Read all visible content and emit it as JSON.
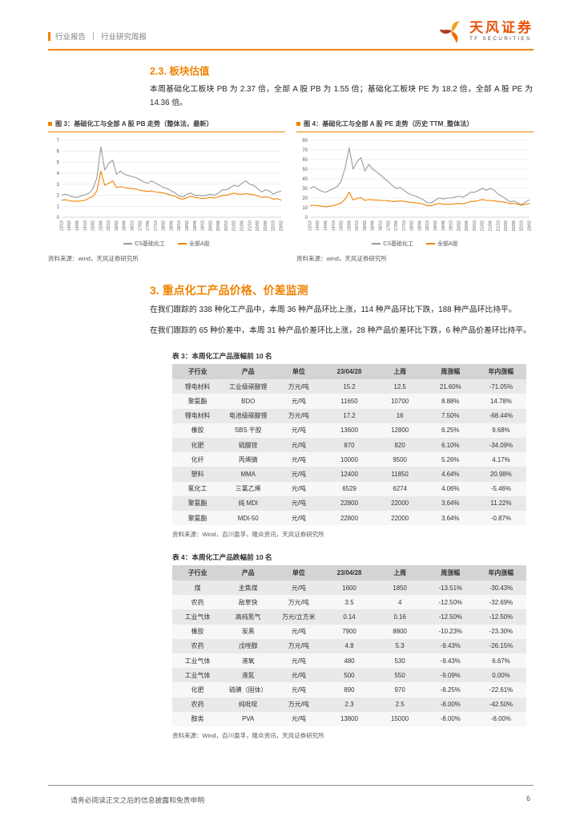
{
  "colors": {
    "accent": "#F08300",
    "brand_text": "#E8540C"
  },
  "header": {
    "category": "行业报告",
    "subtitle": "行业研究周报",
    "brand": {
      "name": "天风证券",
      "subname": "TF SECURITIES"
    }
  },
  "section_valuation": {
    "heading": "2.3. 板块估值",
    "paragraph": "本周基础化工板块 PB 为 2.37 倍，全部 A 股 PB 为 1.55 倍；基础化工板块 PE 为 18.2 倍，全部 A 股 PE 为 14.36 倍。"
  },
  "figures": [
    {
      "title": "图 3：基础化工与全部 A 股 PB 走势（整体法，最新）",
      "source": "资料来源：wind，天风证券研究所"
    },
    {
      "title": "图 4：基础化工与全部 A 股 PE 走势（历史 TTM_整体法）",
      "source": "资料来源：wind，天风证券研究所"
    }
  ],
  "chart_data": [
    {
      "type": "line",
      "title": "基础化工与全部A股PB走势（整体法，最新）",
      "ylim": [
        0,
        7
      ],
      "yticks": [
        0,
        1,
        2,
        3,
        4,
        5,
        6,
        7
      ],
      "grid": true,
      "legend_position": "bottom",
      "x_labels": [
        "13/10",
        "14/02",
        "14/06",
        "14/10",
        "15/02",
        "15/06",
        "15/10",
        "16/02",
        "16/06",
        "16/10",
        "17/02",
        "17/06",
        "17/10",
        "18/02",
        "18/06",
        "18/10",
        "19/02",
        "19/06",
        "19/10",
        "20/02",
        "20/06",
        "20/10",
        "21/02",
        "21/06",
        "21/10",
        "22/02",
        "22/06",
        "22/10",
        "23/02"
      ],
      "series": [
        {
          "name": "CS基础化工",
          "color": "#9B9B9B",
          "values": [
            2.0,
            2.1,
            1.95,
            1.85,
            1.8,
            1.95,
            2.05,
            2.2,
            2.6,
            3.6,
            6.4,
            4.3,
            4.9,
            5.2,
            3.9,
            4.2,
            3.9,
            3.8,
            3.7,
            3.6,
            3.4,
            3.2,
            3.1,
            3.3,
            3.1,
            2.9,
            2.7,
            2.6,
            2.4,
            2.2,
            1.9,
            1.85,
            2.1,
            2.2,
            2.0,
            2.0,
            1.95,
            2.0,
            2.1,
            2.0,
            2.2,
            2.5,
            2.5,
            2.7,
            2.9,
            2.8,
            3.1,
            3.3,
            3.0,
            2.9,
            2.6,
            2.3,
            2.5,
            2.4,
            2.1,
            2.3,
            2.37
          ]
        },
        {
          "name": "全部A股",
          "color": "#F08300",
          "values": [
            1.55,
            1.6,
            1.5,
            1.45,
            1.45,
            1.5,
            1.55,
            1.75,
            1.9,
            2.4,
            4.2,
            2.9,
            3.1,
            3.3,
            2.7,
            2.8,
            2.7,
            2.65,
            2.6,
            2.55,
            2.45,
            2.4,
            2.35,
            2.4,
            2.3,
            2.25,
            2.2,
            2.1,
            2.0,
            1.9,
            1.7,
            1.65,
            1.8,
            1.9,
            1.8,
            1.75,
            1.7,
            1.75,
            1.8,
            1.75,
            1.85,
            2.0,
            2.0,
            2.1,
            2.2,
            2.1,
            2.1,
            2.15,
            2.1,
            2.05,
            1.95,
            1.8,
            1.85,
            1.8,
            1.65,
            1.7,
            1.55
          ]
        }
      ]
    },
    {
      "type": "line",
      "title": "基础化工与全部A股PE走势（历史TTM_整体法）",
      "ylim": [
        0,
        80
      ],
      "yticks": [
        0,
        10,
        20,
        30,
        40,
        50,
        60,
        70,
        80
      ],
      "grid": true,
      "legend_position": "bottom",
      "x_labels": [
        "13/10",
        "14/02",
        "14/06",
        "14/10",
        "15/02",
        "15/06",
        "15/10",
        "16/02",
        "16/06",
        "16/10",
        "17/02",
        "17/06",
        "17/10",
        "18/02",
        "18/06",
        "18/10",
        "19/02",
        "19/06",
        "19/10",
        "20/02",
        "20/06",
        "20/10",
        "21/02",
        "21/06",
        "21/10",
        "22/02",
        "22/06",
        "22/10",
        "23/02"
      ],
      "series": [
        {
          "name": "CS基础化工",
          "color": "#9B9B9B",
          "values": [
            30,
            32,
            29,
            27,
            26,
            28,
            30,
            32,
            38,
            52,
            72,
            50,
            58,
            62,
            48,
            55,
            50,
            47,
            44,
            40,
            37,
            33,
            30,
            31,
            28,
            25,
            23,
            22,
            20,
            18,
            15,
            15,
            18,
            20,
            19,
            20,
            20,
            21,
            22,
            21,
            23,
            26,
            26,
            28,
            30,
            28,
            30,
            28,
            24,
            22,
            19,
            16,
            17,
            15,
            13,
            16,
            18.2
          ]
        },
        {
          "name": "全部A股",
          "color": "#F08300",
          "values": [
            12,
            12.5,
            12,
            11.5,
            11,
            11.5,
            12,
            13.5,
            15,
            19,
            26,
            18,
            19.5,
            20.5,
            17.5,
            18.5,
            18,
            18,
            17.5,
            17.5,
            17,
            16.5,
            16.5,
            17,
            16.5,
            16,
            15.5,
            15,
            14.5,
            13.5,
            12,
            12,
            13.5,
            14.5,
            13.5,
            13.5,
            13.5,
            14,
            14.5,
            14,
            15,
            16.5,
            16.5,
            17.5,
            18.5,
            17.5,
            17.5,
            17,
            16.5,
            16,
            15.5,
            14,
            14.5,
            13.5,
            12.5,
            13.5,
            14.36
          ]
        }
      ]
    }
  ],
  "section_products": {
    "heading": "3. 重点化工产品价格、价差监测",
    "paragraph1": "在我们跟踪的 338 种化工产品中，本周 36 种产品环比上涨，114 种产品环比下跌，188 种产品环比持平。",
    "paragraph2": "在我们跟踪的 65 种价差中，本周 31 种产品价差环比上涨，28 种产品价差环比下跌，6 种产品价差环比持平。"
  },
  "tables": [
    {
      "caption": "表 3：本周化工产品涨幅前 10 名",
      "columns": [
        "子行业",
        "产品",
        "单位",
        "23/04/28",
        "上周",
        "周涨幅",
        "年内涨幅"
      ],
      "rows": [
        [
          "锂电材料",
          "工业级碳酸锂",
          "万元/吨",
          "15.2",
          "12.5",
          "21.60%",
          "-71.05%"
        ],
        [
          "聚氨酯",
          "BDO",
          "元/吨",
          "11650",
          "10700",
          "8.88%",
          "14.78%"
        ],
        [
          "锂电材料",
          "电池级碳酸锂",
          "万元/吨",
          "17.2",
          "16",
          "7.50%",
          "-68.44%"
        ],
        [
          "橡胶",
          "SBS 干胶",
          "元/吨",
          "13600",
          "12800",
          "6.25%",
          "9.68%"
        ],
        [
          "化肥",
          "硫酸铵",
          "元/吨",
          "870",
          "820",
          "6.10%",
          "-34.09%"
        ],
        [
          "化纤",
          "丙烯腈",
          "元/吨",
          "10000",
          "9500",
          "5.26%",
          "4.17%"
        ],
        [
          "塑料",
          "MMA",
          "元/吨",
          "12400",
          "11850",
          "4.64%",
          "20.98%"
        ],
        [
          "氟化工",
          "三氯乙烯",
          "元/吨",
          "6529",
          "6274",
          "4.06%",
          "-5.46%"
        ],
        [
          "聚氨酯",
          "纯 MDI",
          "元/吨",
          "22800",
          "22000",
          "3.64%",
          "11.22%"
        ],
        [
          "聚氨酯",
          "MDI-50",
          "元/吨",
          "22800",
          "22000",
          "3.64%",
          "-0.87%"
        ]
      ],
      "source": "资料来源：Wind，百川盈孚，隆众资讯，天风证券研究所"
    },
    {
      "caption": "表 4：本周化工产品跌幅前 10 名",
      "columns": [
        "子行业",
        "产品",
        "单位",
        "23/04/28",
        "上周",
        "周涨幅",
        "年内涨幅"
      ],
      "rows": [
        [
          "煤",
          "主焦煤",
          "元/吨",
          "1600",
          "1850",
          "-13.51%",
          "-30.43%"
        ],
        [
          "农药",
          "敌草快",
          "万元/吨",
          "3.5",
          "4",
          "-12.50%",
          "-32.69%"
        ],
        [
          "工业气体",
          "高纯氪气",
          "万元/立方米",
          "0.14",
          "0.16",
          "-12.50%",
          "-12.50%"
        ],
        [
          "橡胶",
          "炭黑",
          "元/吨",
          "7900",
          "8800",
          "-10.23%",
          "-23.30%"
        ],
        [
          "农药",
          "戊唑醇",
          "万元/吨",
          "4.8",
          "5.3",
          "-9.43%",
          "-26.15%"
        ],
        [
          "工业气体",
          "液氧",
          "元/吨",
          "480",
          "530",
          "-9.43%",
          "6.67%"
        ],
        [
          "工业气体",
          "液氮",
          "元/吨",
          "500",
          "550",
          "-9.09%",
          "0.00%"
        ],
        [
          "化肥",
          "硫磺（固体）",
          "元/吨",
          "890",
          "970",
          "-8.25%",
          "-22.61%"
        ],
        [
          "农药",
          "纯吡啶",
          "万元/吨",
          "2.3",
          "2.5",
          "-8.00%",
          "-42.50%"
        ],
        [
          "醇类",
          "PVA",
          "元/吨",
          "13800",
          "15000",
          "-8.00%",
          "-8.00%"
        ]
      ],
      "source": "资料来源：Wind，百川盈孚，隆众资讯，天风证券研究所"
    }
  ],
  "footer": {
    "disclaimer": "请务必阅读正文之后的信息披露和免责申明",
    "page": "6"
  }
}
